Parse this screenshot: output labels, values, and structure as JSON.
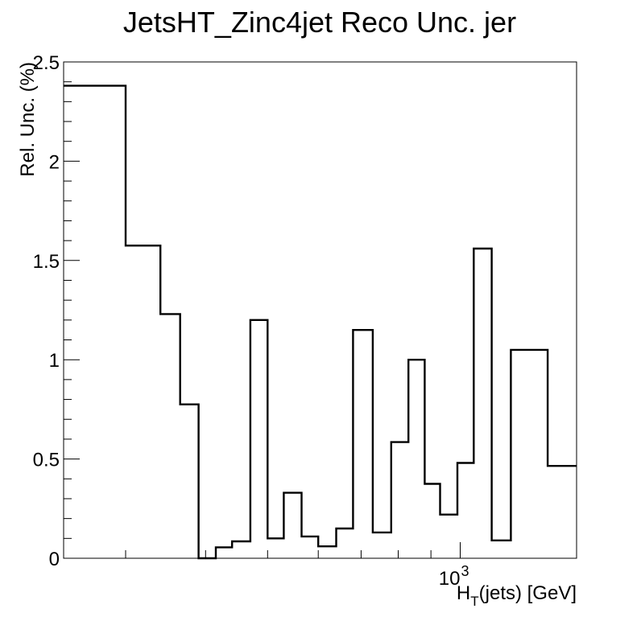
{
  "chart_data": {
    "type": "step",
    "title": "JetsHT_Zinc4jet Reco Unc. jer",
    "ylabel": "Rel. Unc. (%)",
    "xlabel": "H_T(jets) [GeV]",
    "xlabel_main": "H",
    "xlabel_sub": "T",
    "xlabel_rest": "(jets) [GeV]",
    "x_scale": "log",
    "xlim": [
      240,
      1520
    ],
    "ylim": [
      0,
      2.5
    ],
    "y_ticks": [
      0,
      0.5,
      1,
      1.5,
      2,
      2.5
    ],
    "y_tick_labels": [
      "0",
      "0.5",
      "1",
      "1.5",
      "2",
      "2.5"
    ],
    "x_tick_label": {
      "base": "10",
      "exponent": "3",
      "value": 1000
    },
    "bins": [
      {
        "low": 240,
        "high": 300,
        "value": 2.38
      },
      {
        "low": 300,
        "high": 340,
        "value": 1.575
      },
      {
        "low": 340,
        "high": 365,
        "value": 1.23
      },
      {
        "low": 365,
        "high": 390,
        "value": 0.775
      },
      {
        "low": 390,
        "high": 415,
        "value": 0.0
      },
      {
        "low": 415,
        "high": 440,
        "value": 0.055
      },
      {
        "low": 440,
        "high": 470,
        "value": 0.085
      },
      {
        "low": 470,
        "high": 500,
        "value": 1.2
      },
      {
        "low": 500,
        "high": 530,
        "value": 0.1
      },
      {
        "low": 530,
        "high": 565,
        "value": 0.33
      },
      {
        "low": 565,
        "high": 600,
        "value": 0.11
      },
      {
        "low": 600,
        "high": 640,
        "value": 0.06
      },
      {
        "low": 640,
        "high": 680,
        "value": 0.15
      },
      {
        "low": 680,
        "high": 730,
        "value": 1.15
      },
      {
        "low": 730,
        "high": 780,
        "value": 0.13
      },
      {
        "low": 780,
        "high": 830,
        "value": 0.585
      },
      {
        "low": 830,
        "high": 880,
        "value": 1.0
      },
      {
        "low": 880,
        "high": 930,
        "value": 0.375
      },
      {
        "low": 930,
        "high": 990,
        "value": 0.22
      },
      {
        "low": 990,
        "high": 1050,
        "value": 0.48
      },
      {
        "low": 1050,
        "high": 1120,
        "value": 1.56
      },
      {
        "low": 1120,
        "high": 1200,
        "value": 0.09
      },
      {
        "low": 1200,
        "high": 1370,
        "value": 1.05
      },
      {
        "low": 1370,
        "high": 1520,
        "value": 0.465
      }
    ],
    "line_color": "#000000",
    "grid": false,
    "legend": "none"
  }
}
